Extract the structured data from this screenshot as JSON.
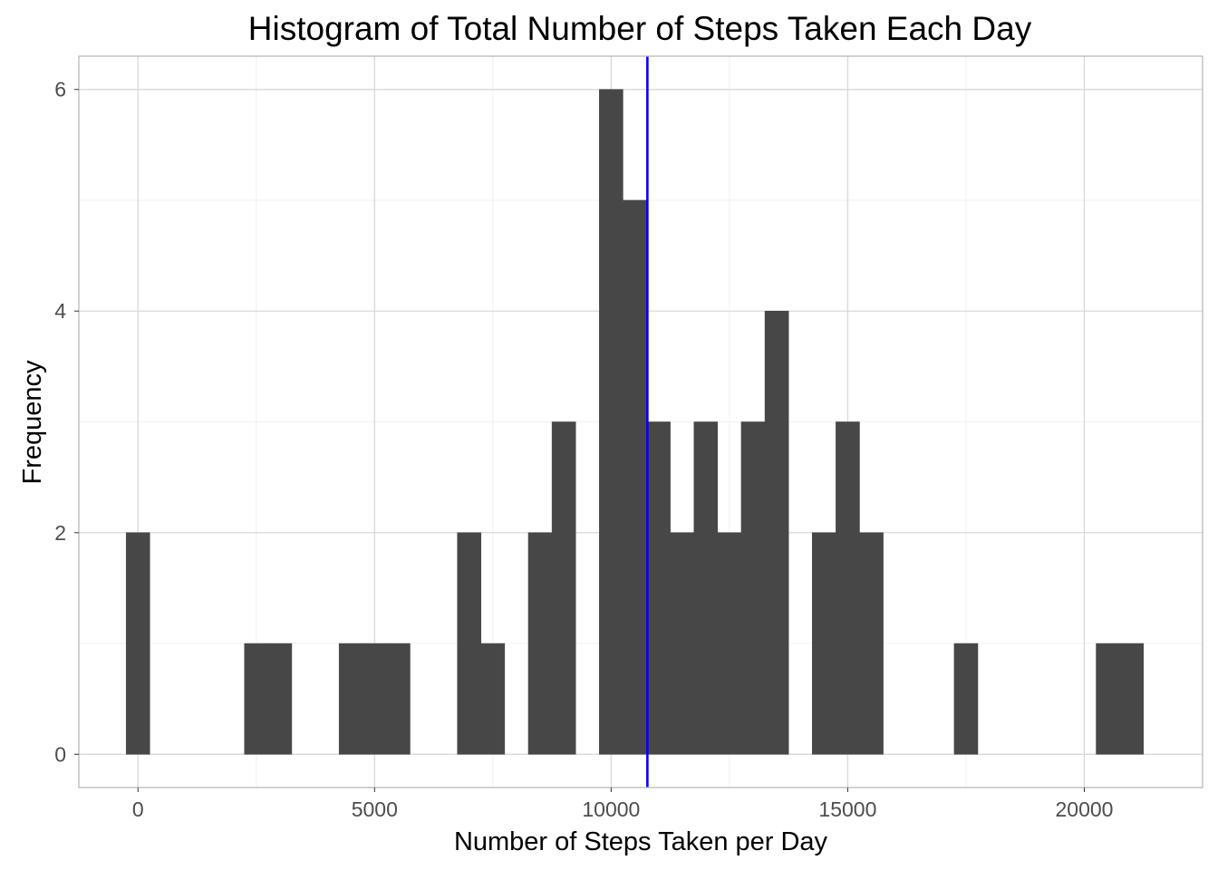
{
  "chart_data": {
    "type": "bar",
    "title": "Histogram of Total Number of Steps Taken Each Day",
    "xlabel": "Number of Steps Taken per Day",
    "ylabel": "Frequency",
    "bin_width": 500,
    "bins": [
      {
        "x": 0,
        "count": 2
      },
      {
        "x": 2500,
        "count": 1
      },
      {
        "x": 3000,
        "count": 1
      },
      {
        "x": 4500,
        "count": 1
      },
      {
        "x": 5000,
        "count": 1
      },
      {
        "x": 5500,
        "count": 1
      },
      {
        "x": 7000,
        "count": 2
      },
      {
        "x": 7500,
        "count": 1
      },
      {
        "x": 8500,
        "count": 2
      },
      {
        "x": 9000,
        "count": 3
      },
      {
        "x": 10000,
        "count": 6
      },
      {
        "x": 10500,
        "count": 5
      },
      {
        "x": 11000,
        "count": 3
      },
      {
        "x": 11500,
        "count": 2
      },
      {
        "x": 12000,
        "count": 3
      },
      {
        "x": 12500,
        "count": 2
      },
      {
        "x": 13000,
        "count": 3
      },
      {
        "x": 13500,
        "count": 4
      },
      {
        "x": 14500,
        "count": 2
      },
      {
        "x": 15000,
        "count": 3
      },
      {
        "x": 15500,
        "count": 2
      },
      {
        "x": 17500,
        "count": 1
      },
      {
        "x": 20500,
        "count": 1
      },
      {
        "x": 21000,
        "count": 1
      }
    ],
    "mean_line": {
      "x": 10766,
      "color": "#0000ff"
    },
    "xlim": [
      -1250,
      22500
    ],
    "ylim": [
      -0.3,
      6.3
    ],
    "x_ticks": [
      0,
      5000,
      10000,
      15000,
      20000
    ],
    "x_tick_labels": [
      "0",
      "5000",
      "10000",
      "15000",
      "20000"
    ],
    "y_ticks": [
      0,
      2,
      4,
      6
    ],
    "y_tick_labels": [
      "0",
      "2",
      "4",
      "6"
    ],
    "x_minor_ticks": [
      2500,
      7500,
      12500,
      17500
    ],
    "y_minor_ticks": [
      1,
      3,
      5
    ],
    "grid": true,
    "colors": {
      "bar": "#474747",
      "grid_major": "#d9d9d9",
      "grid_minor": "#f0f0f0",
      "panel_border": "#b3b3b3",
      "tick_label": "#4d4d4d"
    }
  }
}
